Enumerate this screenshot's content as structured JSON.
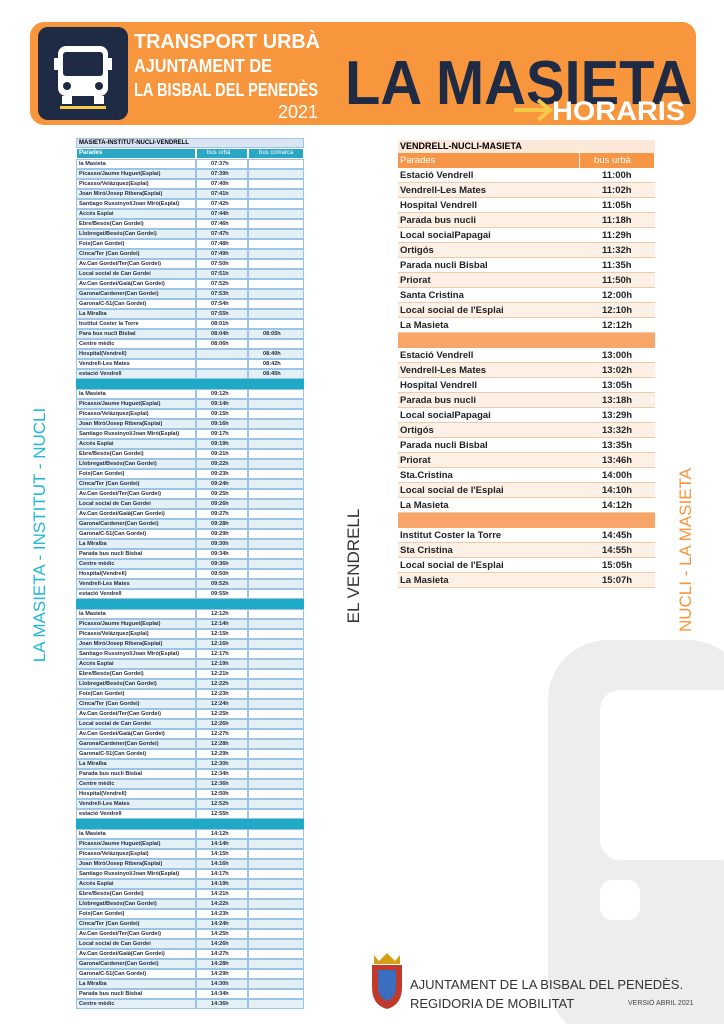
{
  "header": {
    "line1": "TRANSPORT URBÀ",
    "line2": "AJUNTAMENT DE",
    "line3": "LA BISBAL DEL PENEDÈS",
    "year": "2021",
    "place": "LA MASIETA",
    "subtitle": "HORARIS"
  },
  "left_table": {
    "title": "MASIETA-INSTITUT-NUCLI-VENDRELL",
    "headers": [
      "Parades",
      "bus urbà",
      "bus comarca"
    ],
    "blocks": [
      [
        [
          "la Masieta",
          "07:37h",
          null
        ],
        [
          "Picasso/Jaume Huguet(Esplai)",
          "07:39h",
          null
        ],
        [
          "Picasso/Velázquez(Esplai)",
          "07:40h",
          null
        ],
        [
          "Joan Miró/Josep Ribera(Esplai)",
          "07:41h",
          null
        ],
        [
          "Santiago Russinyol/Joan Miró(Esplai)",
          "07:42h",
          null
        ],
        [
          "Accés Esplai",
          "07:44h",
          null
        ],
        [
          "Ebre/Besós(Can Gordei)",
          "07:46h",
          null
        ],
        [
          "Llobregat/Besós(Can Gordei)",
          "07:47h",
          null
        ],
        [
          "Foix(Can Gordei)",
          "07:48h",
          null
        ],
        [
          "Cinca/Ter (Can Gordei)",
          "07:49h",
          null
        ],
        [
          "Av.Can Gordei/Ter(Can Gordei)",
          "07:50h",
          null
        ],
        [
          "Local social de Can Gordei",
          "07:51h",
          null
        ],
        [
          "Av.Can Gordei/Gaià(Can Gordei)",
          "07:52h",
          null
        ],
        [
          "Garona/Cardener(Can Gordei)",
          "07:53h",
          null
        ],
        [
          "Garona/C-51(Can Gordei)",
          "07:54h",
          null
        ],
        [
          "La Miralba",
          "07:55h",
          null
        ],
        [
          "Institut Coster la Torre",
          "08:01h",
          null
        ],
        [
          "Para bus nucli Bisbal",
          "08:04h",
          "08:05h"
        ],
        [
          "Centre mèdic",
          "08:06h",
          null
        ],
        [
          "Hospital(Vendrell)",
          null,
          "08:40h"
        ],
        [
          "Vendrell-Les Mates",
          null,
          "08:42h"
        ],
        [
          "estació Vendrell",
          null,
          "08:45h"
        ]
      ],
      [
        [
          "la Masieta",
          "09:12h",
          null
        ],
        [
          "Picasso/Jaume Huguet(Esplai)",
          "09:14h",
          null
        ],
        [
          "Picasso/Velázquez(Esplai)",
          "09:15h",
          null
        ],
        [
          "Joan Miró/Josep Ribera(Esplai)",
          "09:16h",
          null
        ],
        [
          "Santiago Russinyol/Joan Miró(Esplai)",
          "09:17h",
          null
        ],
        [
          "Accés Esplai",
          "09:19h",
          null
        ],
        [
          "Ebre/Besós(Can Gordei)",
          "09:21h",
          null
        ],
        [
          "Llobregat/Besós(Can Gordei)",
          "09:22h",
          null
        ],
        [
          "Foix(Can Gordei)",
          "09:23h",
          null
        ],
        [
          "Cinca/Ter (Can Gordei)",
          "09:24h",
          null
        ],
        [
          "Av.Can Gordei/Ter(Can Gordei)",
          "09:25h",
          null
        ],
        [
          "Local social de Can Gordei",
          "09:26h",
          null
        ],
        [
          "Av.Can Gordei/Gaià(Can Gordei)",
          "09:27h",
          null
        ],
        [
          "Garona/Cardener(Can Gordei)",
          "09:28h",
          null
        ],
        [
          "Garona/C-51(Can Gordei)",
          "09:29h",
          null
        ],
        [
          "La Miralba",
          "09:30h",
          null
        ],
        [
          "Parada bus nucli Bisbal",
          "09:34h",
          null
        ],
        [
          "Centre mèdic",
          "09:36h",
          null
        ],
        [
          "Hospital(Vendrell)",
          "09:50h",
          null
        ],
        [
          "Vendrell-Les Mates",
          "09:52h",
          null
        ],
        [
          "estació Vendrell",
          "09:55h",
          null
        ]
      ],
      [
        [
          "la Masieta",
          "12:12h",
          null
        ],
        [
          "Picasso/Jaume Huguet(Esplai)",
          "12:14h",
          null
        ],
        [
          "Picasso/Velázquez(Esplai)",
          "12:15h",
          null
        ],
        [
          "Joan Miró/Josep Ribera(Esplai)",
          "12:16h",
          null
        ],
        [
          "Santiago Russinyol/Joan Miró(Esplai)",
          "12:17h",
          null
        ],
        [
          "Accés Esplai",
          "12:19h",
          null
        ],
        [
          "Ebre/Besós(Can Gordei)",
          "12:21h",
          null
        ],
        [
          "Llobregat/Besós(Can Gordei)",
          "12:22h",
          null
        ],
        [
          "Foix(Can Gordei)",
          "12:23h",
          null
        ],
        [
          "Cinca/Ter (Can Gordei)",
          "12:24h",
          null
        ],
        [
          "Av.Can Gordei/Ter(Can Gordei)",
          "12:25h",
          null
        ],
        [
          "Local social de Can Gordei",
          "12:26h",
          null
        ],
        [
          "Av.Can Gordei/Gaià(Can Gordei)",
          "12:27h",
          null
        ],
        [
          "Garona/Cardener(Can Gordei)",
          "12:28h",
          null
        ],
        [
          "Garona/C-51(Can Gordei)",
          "12:29h",
          null
        ],
        [
          "La Miralba",
          "12:30h",
          null
        ],
        [
          "Parada bus nucli Bisbal",
          "12:34h",
          null
        ],
        [
          "Centre mèdic",
          "12:36h",
          null
        ],
        [
          "Hospital(Vendrell)",
          "12:50h",
          null
        ],
        [
          "Vendrell-Les Mates",
          "12:52h",
          null
        ],
        [
          "estació Vendrell",
          "12:55h",
          null
        ]
      ],
      [
        [
          "la Masieta",
          "14:12h",
          null
        ],
        [
          "Picasso/Jaume Huguet(Esplai)",
          "14:14h",
          null
        ],
        [
          "Picasso/Velázquez(Esplai)",
          "14:15h",
          null
        ],
        [
          "Joan Miró/Josep Ribera(Esplai)",
          "14:16h",
          null
        ],
        [
          "Santiago Russinyol/Joan Miró(Esplai)",
          "14:17h",
          null
        ],
        [
          "Accés Esplai",
          "14:19h",
          null
        ],
        [
          "Ebre/Besós(Can Gordei)",
          "14:21h",
          null
        ],
        [
          "Llobregat/Besós(Can Gordei)",
          "14:22h",
          null
        ],
        [
          "Foix(Can Gordei)",
          "14:23h",
          null
        ],
        [
          "Cinca/Ter (Can Gordei)",
          "14:24h",
          null
        ],
        [
          "Av.Can Gordei/Ter(Can Gordei)",
          "14:25h",
          null
        ],
        [
          "Local social de Can Gordei",
          "14:26h",
          null
        ],
        [
          "Av.Can Gordei/Gaià(Can Gordei)",
          "14:27h",
          null
        ],
        [
          "Garona/Cardener(Can Gordei)",
          "14:28h",
          null
        ],
        [
          "Garona/C-51(Can Gordei)",
          "14:29h",
          null
        ],
        [
          "La Miralba",
          "14:30h",
          null
        ],
        [
          "Parada bus nucli Bisbal",
          "14:34h",
          null
        ],
        [
          "Centre mèdic",
          "14:36h",
          null
        ]
      ]
    ]
  },
  "right_table": {
    "title": "VENDRELL-NUCLI-MASIETA",
    "headers": [
      "Parades",
      "bus urbà"
    ],
    "blocks": [
      [
        [
          "Estació Vendrell",
          "11:00h"
        ],
        [
          "Vendrell-Les Mates",
          "11:02h"
        ],
        [
          "Hospital Vendrell",
          "11:05h"
        ],
        [
          "Parada bus nucli",
          "11:18h"
        ],
        [
          "Local socialPapagai",
          "11:29h"
        ],
        [
          "Ortigós",
          "11:32h"
        ],
        [
          "Parada nucli Bisbal",
          "11:35h"
        ],
        [
          "Priorat",
          "11:50h"
        ],
        [
          "Santa Cristina",
          "12:00h"
        ],
        [
          "Local social de l'Esplai",
          "12:10h"
        ],
        [
          "La Masieta",
          "12:12h"
        ]
      ],
      [
        [
          "Estació Vendrell",
          "13:00h"
        ],
        [
          "Vendrell-Les Mates",
          "13:02h"
        ],
        [
          "Hospital Vendrell",
          "13:05h"
        ],
        [
          "Parada bus nucli",
          "13:18h"
        ],
        [
          "Local socialPapagai",
          "13:29h"
        ],
        [
          "Ortigós",
          "13:32h"
        ],
        [
          "Parada nucli Bisbal",
          "13:35h"
        ],
        [
          "Priorat",
          "13:46h"
        ],
        [
          "Sta.Cristina",
          "14:00h"
        ],
        [
          "Local social de l'Esplai",
          "14:10h"
        ],
        [
          "La Masieta",
          "14:12h"
        ]
      ],
      [
        [
          "Institut Coster la Torre",
          "14:45h"
        ],
        [
          "Sta Cristina",
          "14:55h"
        ],
        [
          "Local social de l'Esplai",
          "15:05h"
        ],
        [
          "La Masieta",
          "15:07h"
        ]
      ]
    ]
  },
  "side_labels": {
    "left": "LA MASIETA - INSTITUT - NUCLI",
    "middle": "EL VENDRELL",
    "right": "NUCLI - LA MASIETA"
  },
  "footer": {
    "line1": "AJUNTAMENT DE LA BISBAL DEL PENEDÈS.",
    "line2": "REGIDORIA DE MOBILITAT",
    "version": "VERSIÓ ABRIL 2021"
  }
}
